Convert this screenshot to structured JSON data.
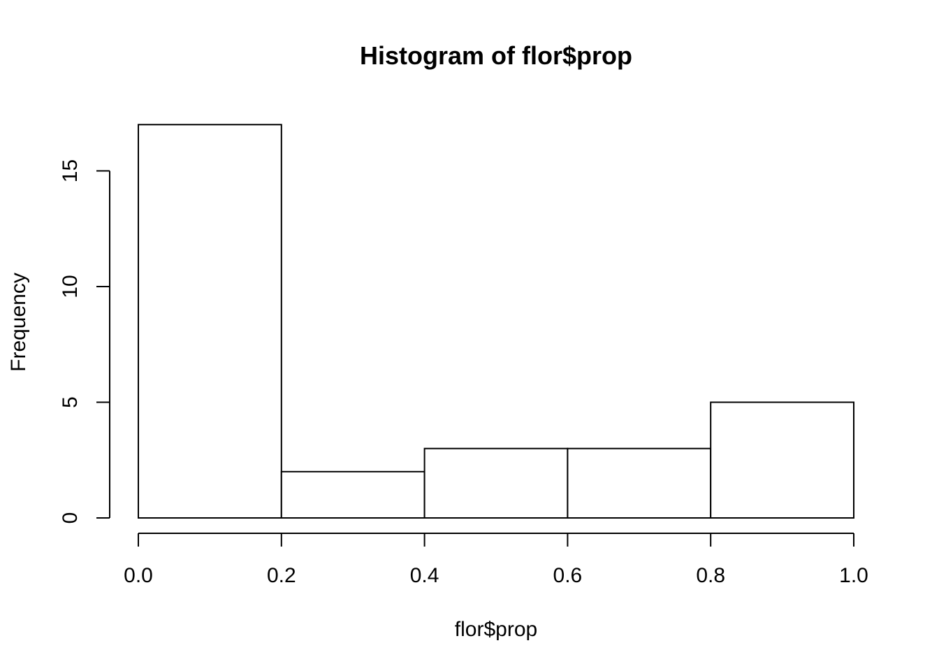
{
  "chart_data": {
    "type": "bar",
    "title": "Histogram of flor$prop",
    "xlabel": "flor$prop",
    "ylabel": "Frequency",
    "bins": [
      {
        "from": 0.0,
        "to": 0.2,
        "count": 17
      },
      {
        "from": 0.2,
        "to": 0.4,
        "count": 2
      },
      {
        "from": 0.4,
        "to": 0.6,
        "count": 3
      },
      {
        "from": 0.6,
        "to": 0.8,
        "count": 3
      },
      {
        "from": 0.8,
        "to": 1.0,
        "count": 5
      }
    ],
    "xlim": [
      0.0,
      1.0
    ],
    "ylim": [
      0,
      17
    ],
    "x_ticks": [
      {
        "value": 0.0,
        "label": "0.0"
      },
      {
        "value": 0.2,
        "label": "0.2"
      },
      {
        "value": 0.4,
        "label": "0.4"
      },
      {
        "value": 0.6,
        "label": "0.6"
      },
      {
        "value": 0.8,
        "label": "0.8"
      },
      {
        "value": 1.0,
        "label": "1.0"
      }
    ],
    "y_ticks": [
      {
        "value": 0,
        "label": "0"
      },
      {
        "value": 5,
        "label": "5"
      },
      {
        "value": 10,
        "label": "10"
      },
      {
        "value": 15,
        "label": "15"
      }
    ],
    "grid": false,
    "colors": {
      "bar_fill": "#ffffff",
      "bar_stroke": "#000000"
    }
  }
}
